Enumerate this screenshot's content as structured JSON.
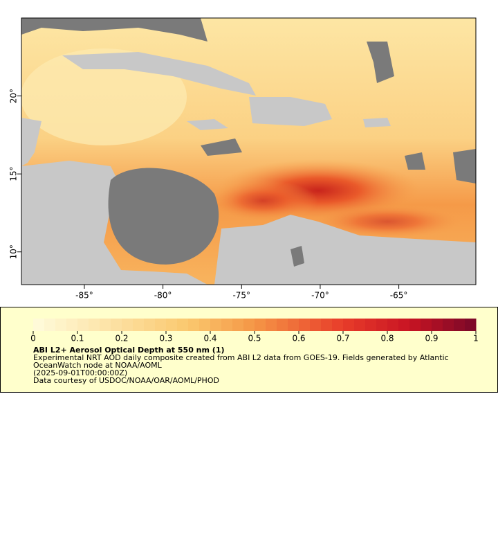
{
  "map": {
    "xlim": [
      -89,
      -60.1
    ],
    "ylim": [
      7.9,
      25
    ],
    "xticks": [
      {
        "value": -85,
        "label": "-85°"
      },
      {
        "value": -80,
        "label": "-80°"
      },
      {
        "value": -75,
        "label": "-75°"
      },
      {
        "value": -70,
        "label": "-70°"
      },
      {
        "value": -65,
        "label": "-65°"
      }
    ],
    "yticks": [
      {
        "value": 10,
        "label": "10°"
      },
      {
        "value": 15,
        "label": "15°"
      },
      {
        "value": 20,
        "label": "20°"
      }
    ]
  },
  "legend": {
    "colorbar": {
      "range": [
        0,
        1
      ],
      "ticks": [
        0,
        0.1,
        0.2,
        0.3,
        0.4,
        0.5,
        0.6,
        0.7,
        0.8,
        0.9,
        1
      ]
    },
    "title": "ABI L2+ Aerosol Optical Depth at 550 nm (1)",
    "description": "Experimental NRT AOD daily composite created from ABI L2 data from GOES-19. Fields generated by Atlantic OceanWatch node at NOAA/AOML",
    "time": "(2025-09-01T00:00:00Z)",
    "credit": "Data courtesy of USDOC/NOAA/OAR/AOML/PHOD"
  }
}
